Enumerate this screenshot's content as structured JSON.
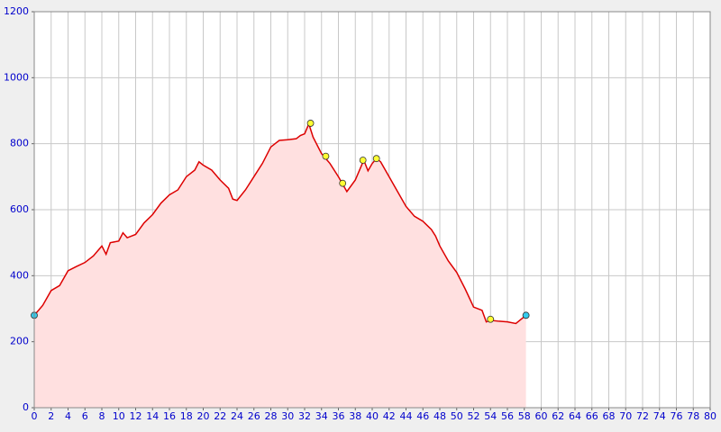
{
  "chart_data": {
    "type": "area",
    "x": [
      0,
      1,
      2,
      3,
      4,
      5,
      6,
      7,
      8,
      8.5,
      9,
      10,
      10.5,
      11,
      12,
      13,
      14,
      15,
      16,
      17,
      18,
      19,
      19.5,
      20,
      21,
      22,
      23,
      23.5,
      24,
      25,
      26,
      27,
      28,
      29,
      30,
      31,
      31.5,
      32,
      32.5,
      33,
      34,
      35,
      36,
      37,
      38,
      39,
      39.5,
      40,
      40.5,
      41,
      42,
      43,
      44,
      45,
      46,
      47,
      47.5,
      48,
      49,
      50,
      51,
      52,
      53,
      53.5,
      54,
      55,
      56,
      57,
      58.2
    ],
    "values": [
      280,
      310,
      355,
      370,
      415,
      428,
      440,
      460,
      490,
      465,
      500,
      505,
      530,
      515,
      525,
      560,
      585,
      620,
      645,
      660,
      700,
      720,
      745,
      735,
      720,
      690,
      665,
      632,
      628,
      660,
      700,
      740,
      790,
      810,
      812,
      815,
      825,
      830,
      860,
      820,
      770,
      740,
      700,
      655,
      690,
      750,
      718,
      740,
      755,
      745,
      700,
      655,
      610,
      580,
      565,
      540,
      520,
      490,
      445,
      410,
      360,
      305,
      295,
      260,
      265,
      262,
      260,
      255,
      280
    ],
    "line_color": "#dd0000",
    "fill_color": "#ffe0e0",
    "markers": {
      "x": [
        0,
        32.7,
        34.5,
        36.5,
        38.9,
        40.5,
        54,
        58.2
      ],
      "y": [
        280,
        862,
        762,
        680,
        750,
        755,
        268,
        280
      ],
      "colors": [
        "#33ccee",
        "#ffff33",
        "#ffff33",
        "#ffff33",
        "#ffff33",
        "#ffff33",
        "#ffff33",
        "#33ccee"
      ]
    },
    "xlim": [
      0,
      80
    ],
    "xticks": [
      0,
      2,
      4,
      6,
      8,
      10,
      12,
      14,
      16,
      18,
      20,
      22,
      24,
      26,
      28,
      30,
      32,
      34,
      36,
      38,
      40,
      42,
      44,
      46,
      48,
      50,
      52,
      54,
      56,
      58,
      60,
      62,
      64,
      66,
      68,
      70,
      72,
      74,
      76,
      78,
      80
    ],
    "ylim": [
      0,
      1200
    ],
    "yticks": [
      0,
      200,
      400,
      600,
      800,
      1000,
      1200
    ],
    "grid": true
  }
}
